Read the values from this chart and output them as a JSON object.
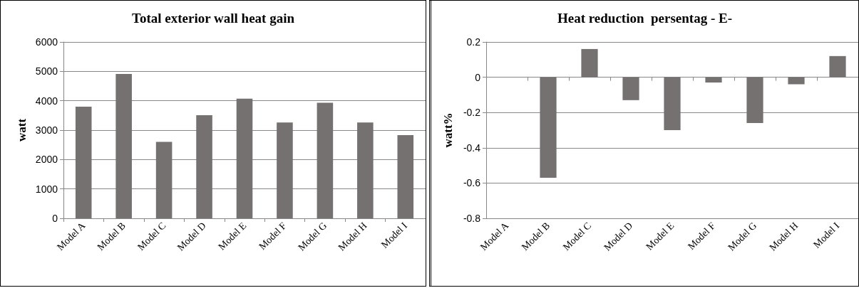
{
  "chart_data": [
    {
      "type": "bar",
      "title": "Total exterior wall heat gain",
      "ylabel": "watt",
      "categories": [
        "Model A",
        "Model B",
        "Model C",
        "Model D",
        "Model E",
        "Model F",
        "Model G",
        "Model H",
        "Model I"
      ],
      "values": [
        3800,
        4910,
        2600,
        3510,
        4070,
        3260,
        3930,
        3260,
        2830
      ],
      "color": "#757170",
      "ylim": [
        0,
        6000
      ],
      "yticks": [
        0,
        1000,
        2000,
        3000,
        4000,
        5000,
        6000
      ],
      "grid": "y"
    },
    {
      "type": "bar",
      "title": "Heat reduction  persentag - E-",
      "ylabel": "watt%",
      "categories": [
        "Model A",
        "Model B",
        "Model C",
        "Model D",
        "Model E",
        "Model F",
        "Model G",
        "Model H",
        "Model I"
      ],
      "values": [
        0,
        -0.57,
        0.16,
        -0.13,
        -0.3,
        -0.03,
        -0.26,
        -0.04,
        0.12
      ],
      "color": "#757170",
      "ylim": [
        -0.8,
        0.2
      ],
      "yticks": [
        -0.8,
        -0.6,
        -0.4,
        -0.2,
        0,
        0.2
      ],
      "grid": "y"
    }
  ]
}
